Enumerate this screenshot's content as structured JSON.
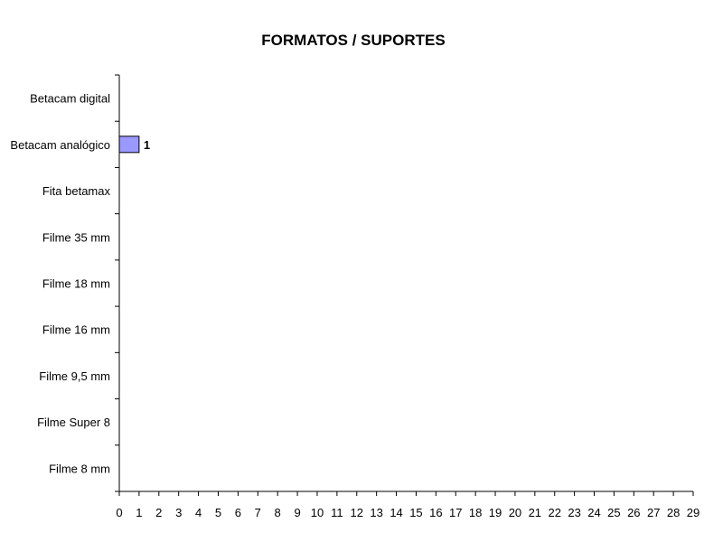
{
  "chart_data": {
    "type": "bar",
    "orientation": "horizontal",
    "title": "FORMATOS / SUPORTES",
    "categories": [
      "Betacam digital",
      "Betacam analógico",
      "Fita betamax",
      "Filme 35 mm",
      "Filme 18 mm",
      "Filme 16 mm",
      "Filme 9,5 mm",
      "Filme Super 8",
      "Filme 8 mm"
    ],
    "values": [
      0,
      1,
      0,
      0,
      0,
      0,
      0,
      0,
      0
    ],
    "data_labels": [
      "",
      "1",
      "",
      "",
      "",
      "",
      "",
      "",
      ""
    ],
    "xlim": [
      0,
      29
    ],
    "xticks": [
      0,
      1,
      2,
      3,
      4,
      5,
      6,
      7,
      8,
      9,
      10,
      11,
      12,
      13,
      14,
      15,
      16,
      17,
      18,
      19,
      20,
      21,
      22,
      23,
      24,
      25,
      26,
      27,
      28,
      29
    ],
    "xlabel": "",
    "ylabel": "",
    "grid": false,
    "legend": "none",
    "bar_color": "#9999ff",
    "bar_border": "#000000"
  }
}
